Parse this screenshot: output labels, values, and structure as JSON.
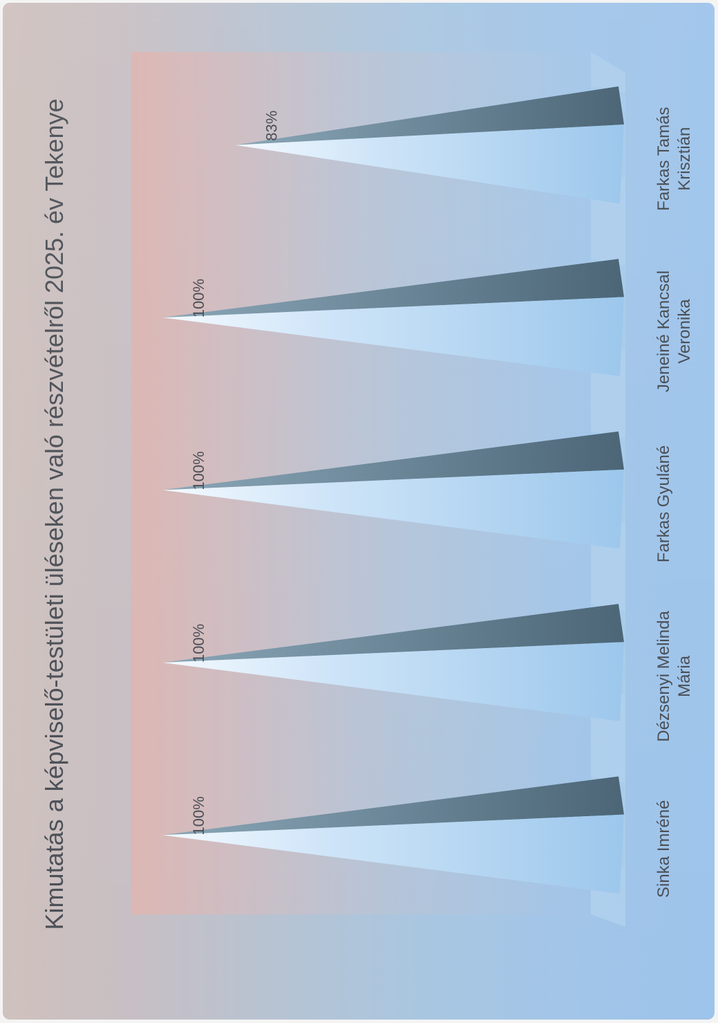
{
  "chart_data": {
    "type": "bar",
    "title": "Kimutatás a képviselő-testületi üléseken való részvételről 2025. év Tekenye",
    "categories": [
      [
        "Sinka Imréné"
      ],
      [
        "Dézsenyi Melinda",
        "Mária"
      ],
      [
        "Farkas Gyuláné"
      ],
      [
        "Jeneiné Kancsal",
        "Veronika"
      ],
      [
        "Farkas Tamás",
        "Krisztián"
      ]
    ],
    "values": [
      100,
      100,
      100,
      100,
      83
    ],
    "data_labels": [
      "100%",
      "100%",
      "100%",
      "100%",
      "83%"
    ],
    "ylim": [
      0,
      100
    ],
    "value_axis": "horizontal, increasing to the left",
    "colors": {
      "text": "#4b4f56",
      "spike_light": "#f2f8fe",
      "spike_mid": "#a7cdee",
      "spike_dark": "#4f6a7a"
    }
  }
}
